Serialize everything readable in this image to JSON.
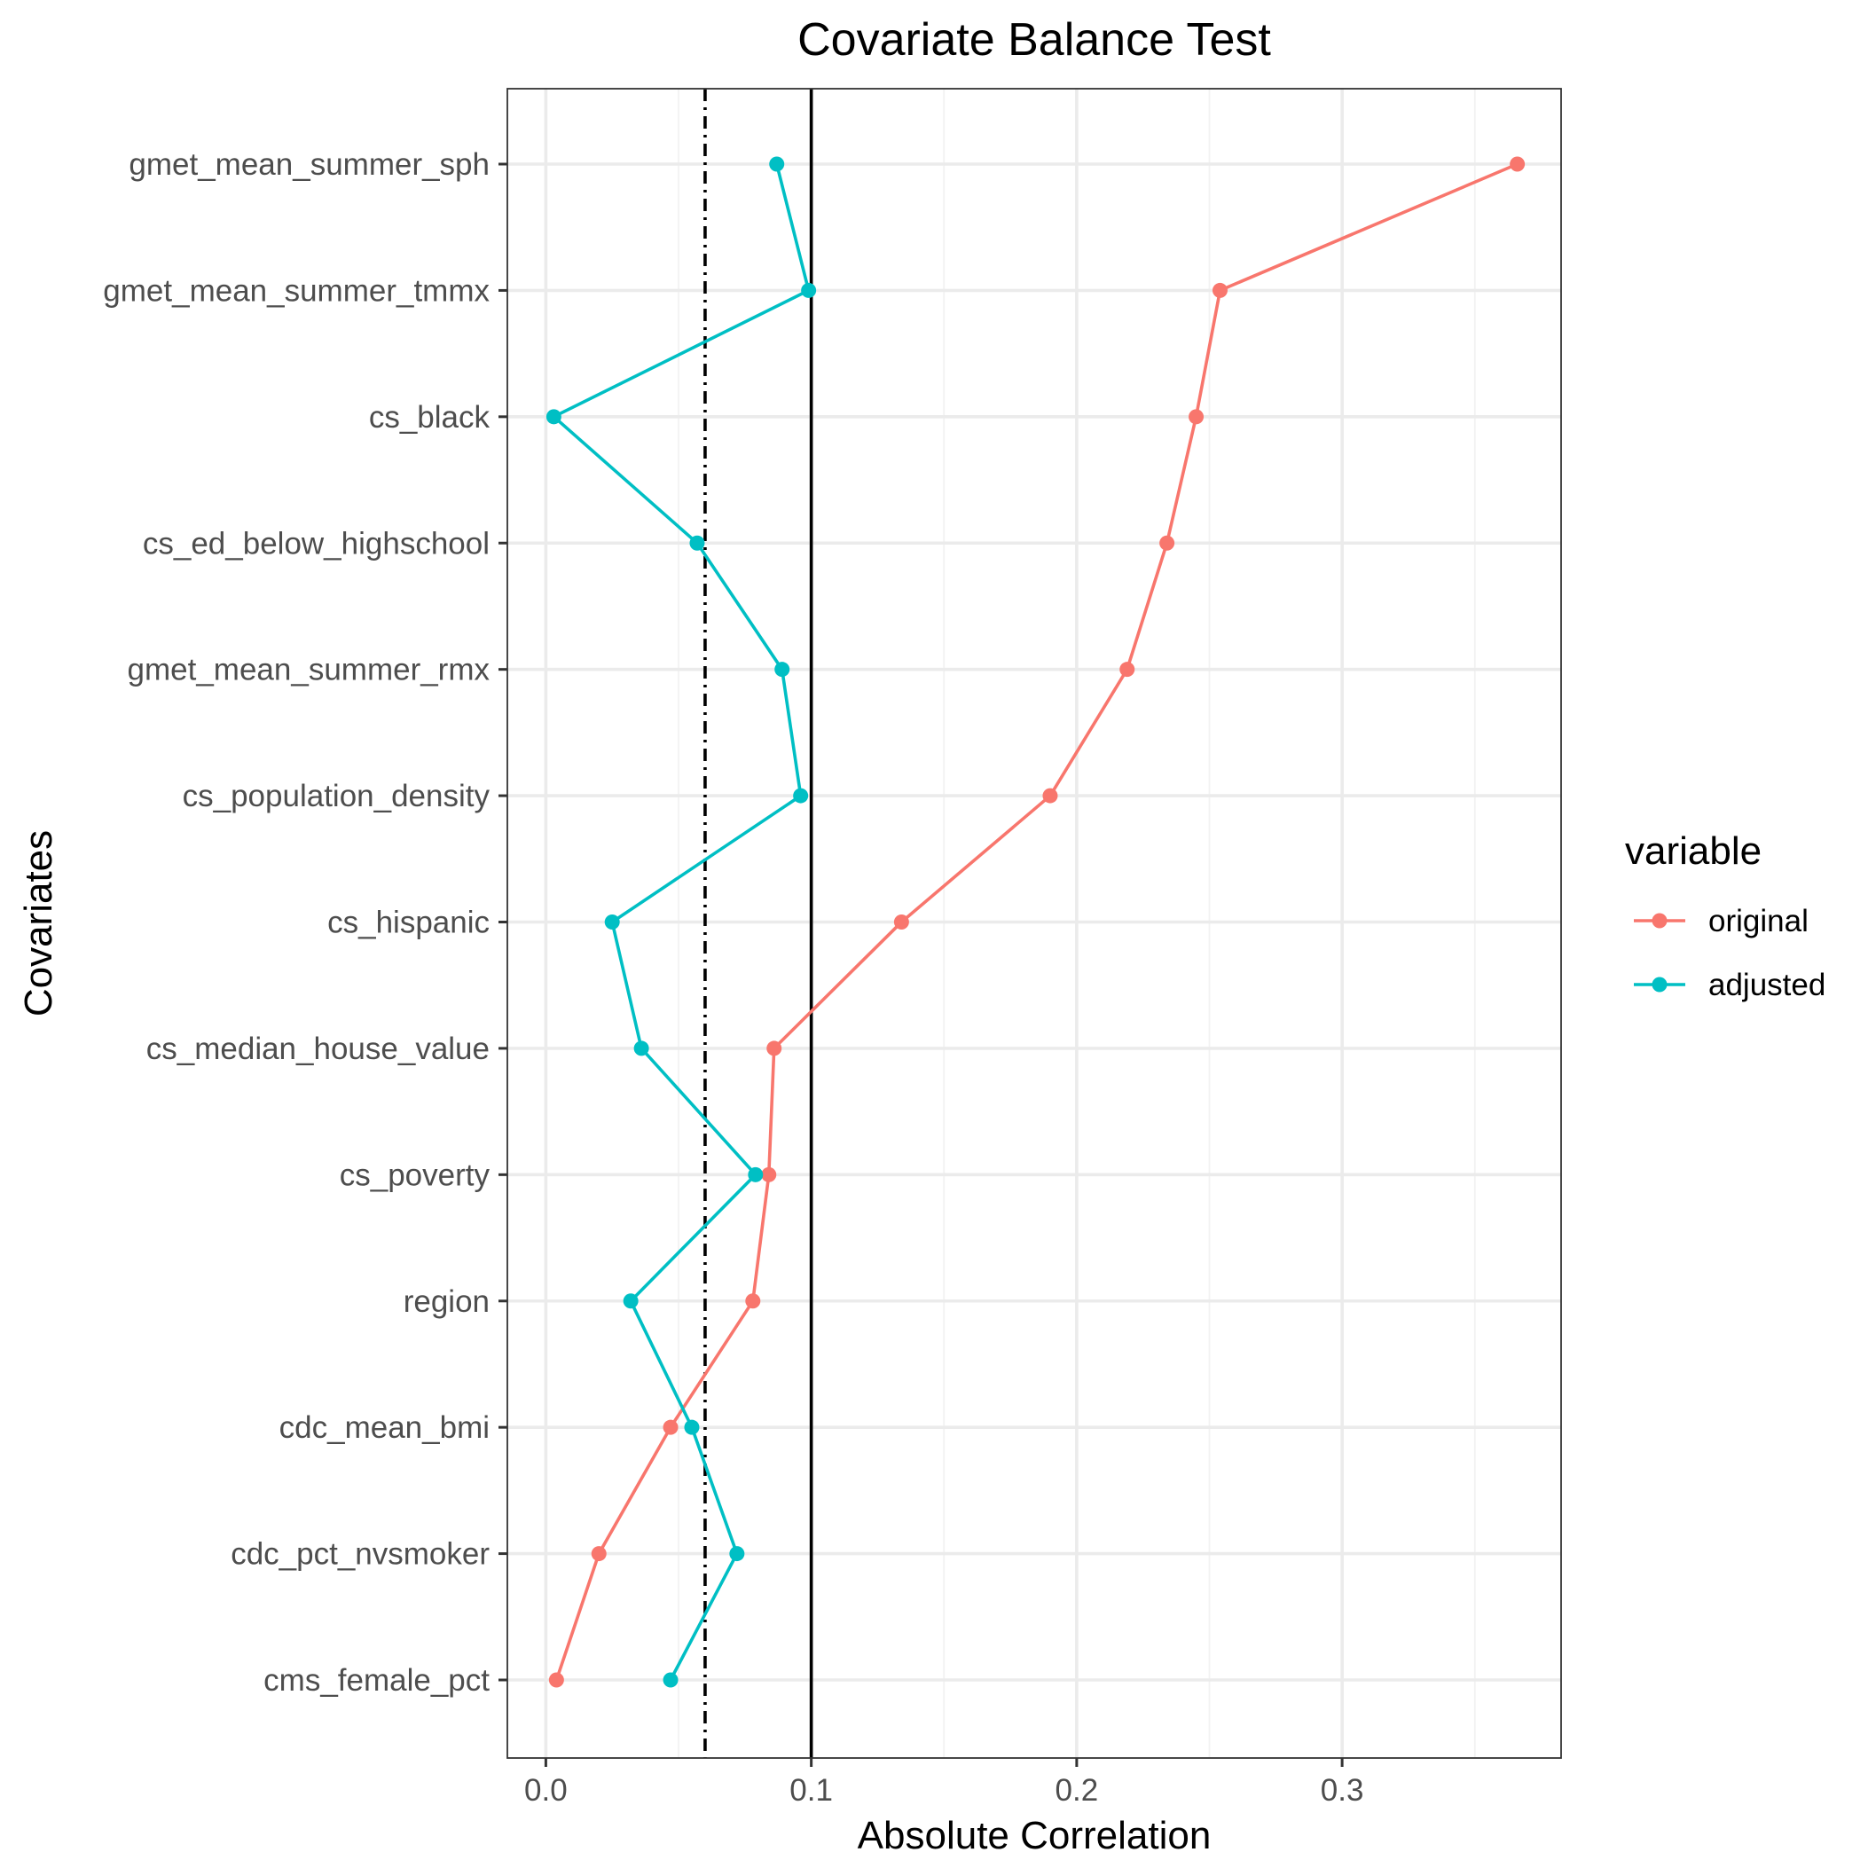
{
  "chart_data": {
    "type": "line",
    "title": "Covariate Balance Test",
    "xlabel": "Absolute Correlation",
    "ylabel": "Covariates",
    "xlim": [
      -0.0145,
      0.3825
    ],
    "x_ticks": [
      0.0,
      0.1,
      0.2,
      0.3
    ],
    "x_tick_labels": [
      "0.0",
      "0.1",
      "0.2",
      "0.3"
    ],
    "x_minor_ticks": [
      0.05,
      0.15,
      0.25,
      0.35
    ],
    "categories": [
      "gmet_mean_summer_sph",
      "gmet_mean_summer_tmmx",
      "cs_black",
      "cs_ed_below_highschool",
      "gmet_mean_summer_rmx",
      "cs_population_density",
      "cs_hispanic",
      "cs_median_house_value",
      "cs_poverty",
      "region",
      "cdc_mean_bmi",
      "cdc_pct_nvsmoker",
      "cms_female_pct"
    ],
    "series": [
      {
        "name": "original",
        "color": "#F8766D",
        "values": [
          0.366,
          0.254,
          0.245,
          0.234,
          0.219,
          0.19,
          0.134,
          0.086,
          0.084,
          0.078,
          0.047,
          0.02,
          0.004
        ]
      },
      {
        "name": "adjusted",
        "color": "#00BFC4",
        "values": [
          0.087,
          0.099,
          0.003,
          0.057,
          0.089,
          0.096,
          0.025,
          0.036,
          0.079,
          0.032,
          0.055,
          0.072,
          0.047
        ]
      }
    ],
    "reference_lines": [
      {
        "x": 0.1,
        "style": "solid",
        "color": "#000000"
      },
      {
        "x": 0.06,
        "style": "dotdash",
        "color": "#000000"
      }
    ],
    "legend": {
      "title": "variable",
      "position": "right",
      "entries": [
        "original",
        "adjusted"
      ]
    },
    "grid": true
  }
}
